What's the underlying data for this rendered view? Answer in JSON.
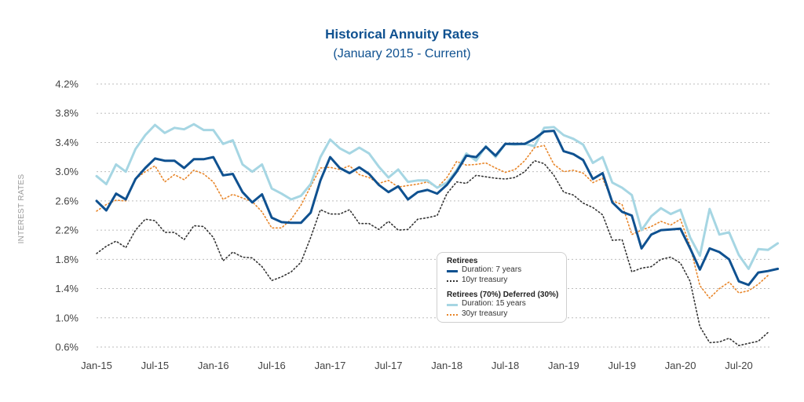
{
  "chart_data": {
    "type": "line",
    "title": "Historical Annuity Rates",
    "subtitle": "(January 2015 - Current)",
    "ylabel": "INTEREST RATES",
    "xlabel": "",
    "ylim": [
      0.6,
      4.2
    ],
    "yticks": [
      0.6,
      1.0,
      1.4,
      1.8,
      2.2,
      2.6,
      3.0,
      3.4,
      3.8,
      4.2
    ],
    "ytick_labels": [
      "0.6%",
      "1.0%",
      "1.4%",
      "1.8%",
      "2.2%",
      "2.6%",
      "3.0%",
      "3.4%",
      "3.8%",
      "4.2%"
    ],
    "xlim": [
      0,
      69
    ],
    "xticks": [
      0,
      6,
      12,
      18,
      24,
      30,
      36,
      42,
      48,
      54,
      60,
      66
    ],
    "xtick_labels": [
      "Jan-15",
      "Jul-15",
      "Jan-16",
      "Jul-16",
      "Jan-17",
      "Jul-17",
      "Jan-18",
      "Jul-18",
      "Jan-19",
      "Jul-19",
      "Jan-20",
      "Jul-20"
    ],
    "x_unit": "months since Jan-15",
    "grid": "horizontal dashed",
    "legend_position": "lower-center",
    "series": [
      {
        "name": "Duration: 7 years",
        "group": "Retirees",
        "color": "#0f5190",
        "style": "solid-thick",
        "values": [
          2.6,
          2.47,
          2.7,
          2.62,
          2.9,
          3.05,
          3.18,
          3.15,
          3.15,
          3.05,
          3.17,
          3.17,
          3.2,
          2.95,
          2.97,
          2.72,
          2.58,
          2.69,
          2.37,
          2.31,
          2.3,
          2.3,
          2.44,
          2.88,
          3.2,
          3.05,
          2.98,
          3.06,
          2.97,
          2.82,
          2.72,
          2.8,
          2.62,
          2.72,
          2.75,
          2.7,
          2.82,
          3.0,
          3.22,
          3.2,
          3.34,
          3.22,
          3.38,
          3.38,
          3.38,
          3.45,
          3.55,
          3.56,
          3.28,
          3.24,
          3.16,
          2.9,
          2.98,
          2.58,
          2.45,
          2.4,
          1.95,
          2.14,
          2.2,
          2.21,
          2.22,
          1.95,
          1.66,
          1.95,
          1.9,
          1.8,
          1.5,
          1.45,
          1.62,
          1.64,
          1.67
        ]
      },
      {
        "name": "10yr treasury",
        "group": "Retirees",
        "color": "#333333",
        "style": "dotted",
        "values": [
          1.88,
          1.98,
          2.05,
          1.96,
          2.2,
          2.35,
          2.33,
          2.17,
          2.17,
          2.07,
          2.26,
          2.25,
          2.1,
          1.78,
          1.9,
          1.83,
          1.82,
          1.7,
          1.51,
          1.56,
          1.63,
          1.76,
          2.1,
          2.48,
          2.42,
          2.42,
          2.48,
          2.29,
          2.29,
          2.21,
          2.32,
          2.2,
          2.21,
          2.35,
          2.37,
          2.4,
          2.7,
          2.86,
          2.84,
          2.95,
          2.93,
          2.91,
          2.9,
          2.92,
          3.0,
          3.15,
          3.11,
          2.95,
          2.72,
          2.68,
          2.57,
          2.51,
          2.41,
          2.06,
          2.07,
          1.63,
          1.68,
          1.7,
          1.8,
          1.83,
          1.75,
          1.5,
          0.88,
          0.66,
          0.67,
          0.72,
          0.62,
          0.65,
          0.68,
          0.8
        ]
      },
      {
        "name": "Duration: 15 years",
        "group": "Retirees (70%) Deferred (30%)",
        "color": "#a6d6e3",
        "style": "solid-thick",
        "values": [
          2.94,
          2.83,
          3.1,
          3.0,
          3.31,
          3.5,
          3.64,
          3.53,
          3.6,
          3.58,
          3.65,
          3.57,
          3.57,
          3.38,
          3.43,
          3.1,
          3.0,
          3.1,
          2.77,
          2.7,
          2.62,
          2.67,
          2.83,
          3.2,
          3.44,
          3.32,
          3.25,
          3.33,
          3.25,
          3.07,
          2.92,
          3.03,
          2.86,
          2.88,
          2.88,
          2.78,
          2.85,
          3.02,
          3.25,
          3.15,
          3.35,
          3.2,
          3.38,
          3.37,
          3.38,
          3.35,
          3.6,
          3.61,
          3.5,
          3.45,
          3.37,
          3.12,
          3.2,
          2.85,
          2.78,
          2.68,
          2.2,
          2.39,
          2.5,
          2.42,
          2.48,
          2.1,
          1.85,
          2.49,
          2.14,
          2.17,
          1.86,
          1.67,
          1.94,
          1.93,
          2.02
        ]
      },
      {
        "name": "30yr treasury",
        "group": "Retirees (70%) Deferred (30%)",
        "color": "#e8862a",
        "style": "dotted",
        "values": [
          2.46,
          2.55,
          2.61,
          2.6,
          2.9,
          3.0,
          3.08,
          2.86,
          2.96,
          2.89,
          3.02,
          2.97,
          2.86,
          2.62,
          2.69,
          2.64,
          2.59,
          2.45,
          2.23,
          2.23,
          2.35,
          2.54,
          2.8,
          3.05,
          3.06,
          3.03,
          3.08,
          2.96,
          2.92,
          2.84,
          2.88,
          2.79,
          2.81,
          2.83,
          2.86,
          2.78,
          2.92,
          3.14,
          3.09,
          3.1,
          3.12,
          3.05,
          2.99,
          3.03,
          3.15,
          3.33,
          3.36,
          3.1,
          3.0,
          3.02,
          2.98,
          2.85,
          2.91,
          2.6,
          2.55,
          2.14,
          2.2,
          2.25,
          2.32,
          2.27,
          2.35,
          1.98,
          1.44,
          1.27,
          1.4,
          1.49,
          1.34,
          1.37,
          1.46,
          1.58
        ]
      }
    ]
  },
  "legend": {
    "group1_title": "Retirees",
    "group1_items": [
      "Duration: 7 years",
      "10yr treasury"
    ],
    "group2_title": "Retirees (70%) Deferred (30%)",
    "group2_items": [
      "Duration: 15 years",
      "30yr treasury"
    ]
  }
}
